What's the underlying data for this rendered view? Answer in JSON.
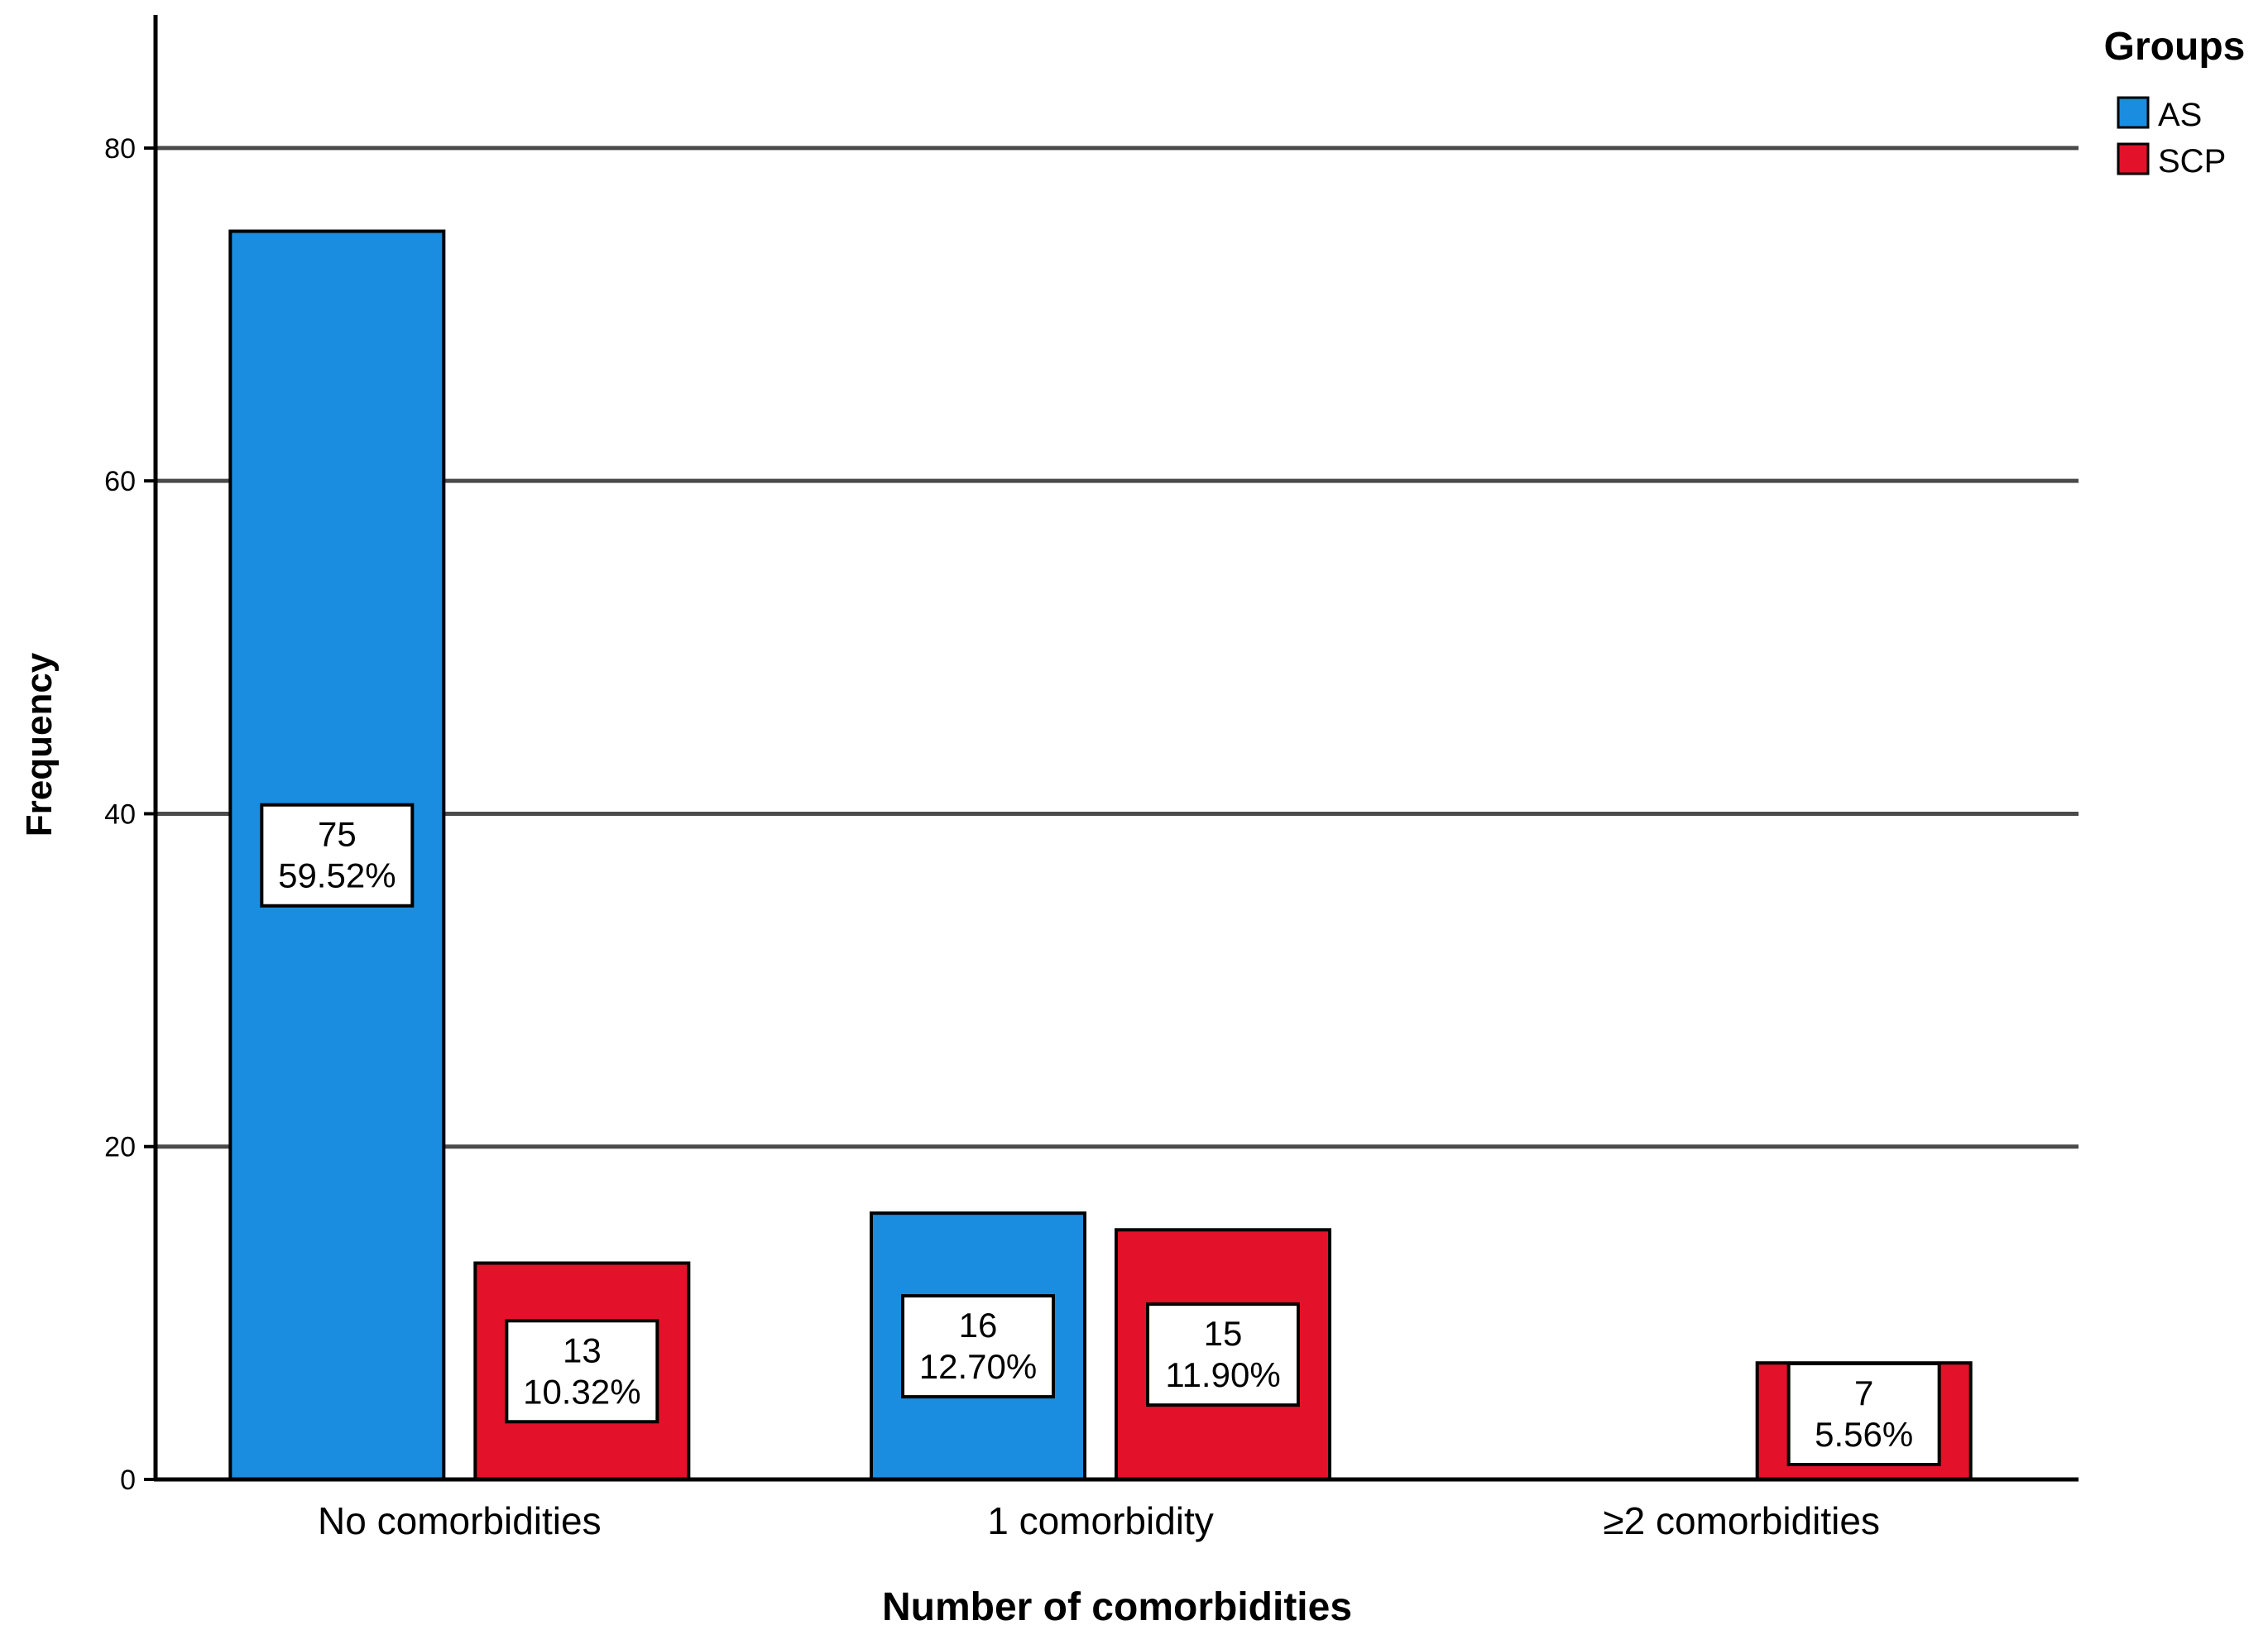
{
  "colors": {
    "AS": "#1a8de0",
    "SCP": "#e3122a",
    "grid": "#4a4a4a",
    "axis": "#000000"
  },
  "legend": {
    "title": "Groups",
    "placement": "top-right"
  },
  "chart_data": {
    "type": "bar",
    "title": "",
    "xlabel": "Number of comorbidities",
    "ylabel": "Frequency",
    "ylim": [
      0,
      88
    ],
    "yticks": [
      0,
      20,
      40,
      60,
      80
    ],
    "grid": true,
    "categories": [
      "No comorbidities",
      "1 comorbidity",
      "≥2 comorbidities"
    ],
    "series": [
      {
        "name": "AS",
        "values": [
          75,
          16,
          null
        ],
        "labels": [
          "59.52%",
          "12.70%",
          null
        ]
      },
      {
        "name": "SCP",
        "values": [
          13,
          15,
          7
        ],
        "labels": [
          "10.32%",
          "11.90%",
          "5.56%"
        ]
      }
    ]
  }
}
